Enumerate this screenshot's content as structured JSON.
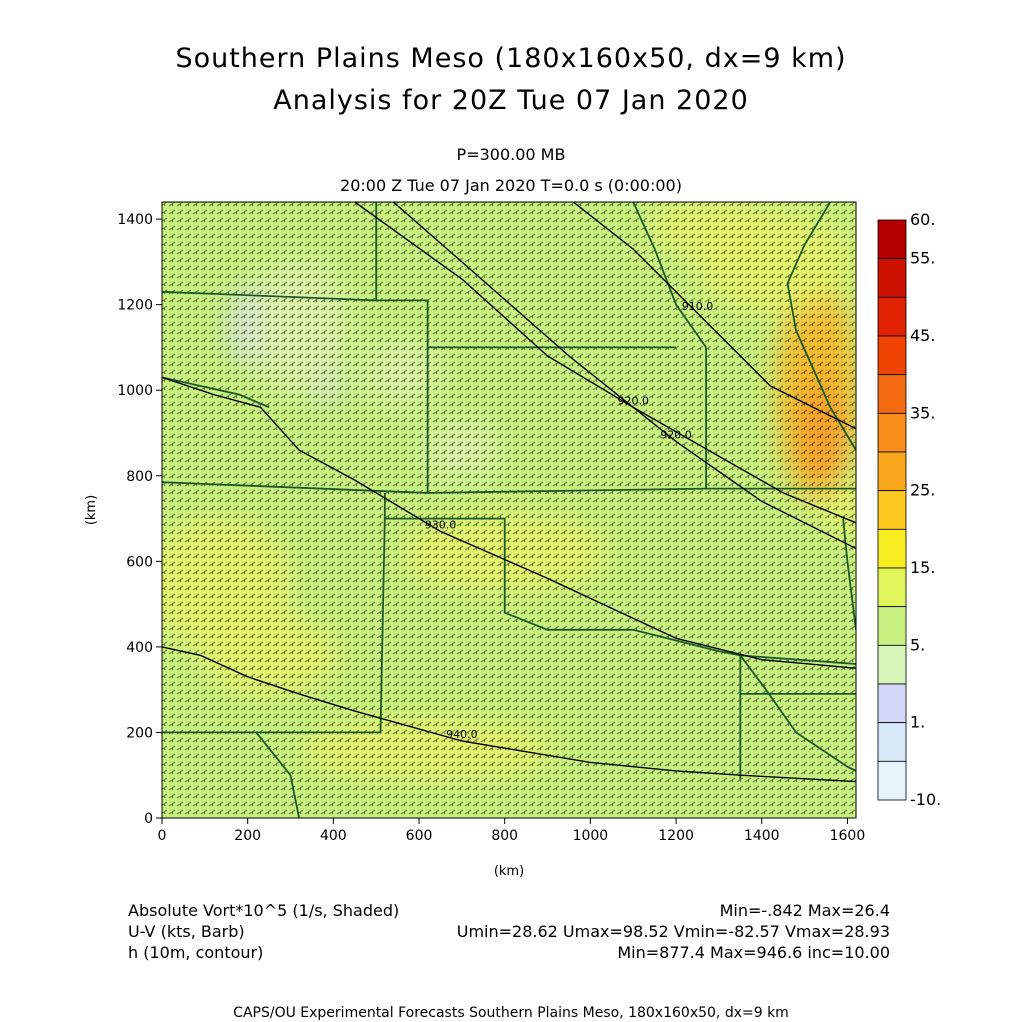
{
  "header": {
    "title": "Southern Plains Meso (180x160x50, dx=9 km)",
    "subtitle": "Analysis for 20Z Tue 07 Jan 2020",
    "level": "P=300.00 MB",
    "time": "20:00 Z Tue 07 Jan 2020    T=0.0 s (0:00:00)"
  },
  "info": {
    "field1_label": "Absolute Vort*10^5 (1/s, Shaded)",
    "field1_stats": "Min=-.842 Max=26.4",
    "field2_label": "U-V (kts, Barb)",
    "field2_stats": "Umin=28.62 Umax=98.52 Vmin=-82.57 Vmax=28.93",
    "field3_label": "h (10m, contour)",
    "field3_stats": "Min=877.4 Max=946.6 inc=10.00"
  },
  "footer": "CAPS/OU Experimental Forecasts  Southern Plains Meso, 180x160x50, dx=9 km",
  "chart_data": {
    "type": "heatmap",
    "xlabel": "(km)",
    "ylabel": "(km)",
    "xlim": [
      0,
      1620
    ],
    "ylim": [
      0,
      1440
    ],
    "xticks": [
      "0",
      "200",
      "400",
      "600",
      "800",
      "1000",
      "1200",
      "1400",
      "1600"
    ],
    "yticks": [
      "0",
      "200",
      "400",
      "600",
      "800",
      "1000",
      "1200",
      "1400"
    ],
    "colorbar": {
      "labels": [
        "60.",
        "55.",
        "45.",
        "35.",
        "25.",
        "15.",
        "5.",
        "1.",
        "-10."
      ],
      "colors": [
        "#b30000",
        "#cc1100",
        "#e02200",
        "#ee4400",
        "#f46a10",
        "#f78c18",
        "#f8a61c",
        "#fbc820",
        "#f8ee22",
        "#e2f55a",
        "#c8f080",
        "#d6f4b8",
        "#d4d8f8",
        "#d8e8f8",
        "#e6f4fc"
      ]
    },
    "contours": [
      {
        "label": "920.0",
        "points": [
          [
            450,
            1440
          ],
          [
            700,
            1260
          ],
          [
            900,
            1080
          ],
          [
            1100,
            960
          ],
          [
            1450,
            760
          ],
          [
            1620,
            690
          ]
        ]
      },
      {
        "label": "930.0",
        "points": [
          [
            0,
            1030
          ],
          [
            120,
            990
          ],
          [
            230,
            960
          ],
          [
            320,
            860
          ],
          [
            450,
            790
          ],
          [
            650,
            670
          ],
          [
            900,
            560
          ],
          [
            1200,
            420
          ],
          [
            1400,
            370
          ],
          [
            1620,
            350
          ]
        ]
      },
      {
        "label": "910.0",
        "points": [
          [
            960,
            1440
          ],
          [
            1100,
            1330
          ],
          [
            1250,
            1180
          ],
          [
            1420,
            1010
          ],
          [
            1620,
            910
          ]
        ]
      },
      {
        "label": "920.0",
        "points": [
          [
            540,
            1440
          ],
          [
            700,
            1300
          ],
          [
            950,
            1080
          ],
          [
            1200,
            880
          ],
          [
            1400,
            740
          ],
          [
            1620,
            630
          ]
        ]
      },
      {
        "label": "940.0",
        "points": [
          [
            0,
            400
          ],
          [
            90,
            380
          ],
          [
            200,
            330
          ],
          [
            320,
            290
          ],
          [
            450,
            250
          ],
          [
            700,
            180
          ],
          [
            1000,
            130
          ],
          [
            1200,
            110
          ],
          [
            1350,
            100
          ],
          [
            1620,
            85
          ]
        ]
      }
    ],
    "shading_blobs": [
      {
        "x": 1530,
        "y": 1000,
        "rx": 95,
        "ry": 260,
        "level": "25."
      },
      {
        "x": 1540,
        "y": 900,
        "rx": 55,
        "ry": 120,
        "level": "35."
      },
      {
        "x": 1430,
        "y": 1300,
        "rx": 180,
        "ry": 120,
        "level": "15."
      },
      {
        "x": 1280,
        "y": 1380,
        "rx": 150,
        "ry": 60,
        "level": "15."
      },
      {
        "x": 1600,
        "y": 720,
        "rx": 60,
        "ry": 60,
        "level": "15."
      },
      {
        "x": 210,
        "y": 1150,
        "rx": 50,
        "ry": 90,
        "level": "1."
      },
      {
        "x": 390,
        "y": 1030,
        "rx": 22,
        "ry": 70,
        "level": "1."
      },
      {
        "x": 710,
        "y": 880,
        "rx": 28,
        "ry": 16,
        "level": "1."
      },
      {
        "x": 320,
        "y": 1150,
        "rx": 120,
        "ry": 160,
        "level": "5."
      },
      {
        "x": 700,
        "y": 860,
        "rx": 90,
        "ry": 70,
        "level": "5."
      },
      {
        "x": 560,
        "y": 1040,
        "rx": 90,
        "ry": 80,
        "level": "5."
      },
      {
        "x": 130,
        "y": 550,
        "rx": 170,
        "ry": 150,
        "level": "15."
      },
      {
        "x": 250,
        "y": 380,
        "rx": 160,
        "ry": 90,
        "level": "15."
      },
      {
        "x": 800,
        "y": 620,
        "rx": 240,
        "ry": 90,
        "level": "15."
      },
      {
        "x": 620,
        "y": 160,
        "rx": 300,
        "ry": 70,
        "level": "15."
      }
    ],
    "boundaries": [
      [
        [
          500,
          1440
        ],
        [
          500,
          1210
        ],
        [
          0,
          1230
        ]
      ],
      [
        [
          500,
          1210
        ],
        [
          620,
          1210
        ],
        [
          620,
          760
        ],
        [
          0,
          785
        ]
      ],
      [
        [
          620,
          1100
        ],
        [
          1200,
          1100
        ]
      ],
      [
        [
          620,
          760
        ],
        [
          1270,
          770
        ],
        [
          1620,
          770
        ]
      ],
      [
        [
          1270,
          770
        ],
        [
          1270,
          1100
        ]
      ],
      [
        [
          520,
          760
        ],
        [
          520,
          700
        ],
        [
          800,
          700
        ],
        [
          800,
          480
        ],
        [
          900,
          440
        ],
        [
          1100,
          440
        ],
        [
          1300,
          390
        ],
        [
          1350,
          380
        ],
        [
          1620,
          360
        ]
      ],
      [
        [
          520,
          700
        ],
        [
          510,
          200
        ],
        [
          0,
          200
        ]
      ],
      [
        [
          1350,
          380
        ],
        [
          1350,
          90
        ]
      ],
      [
        [
          1270,
          1100
        ],
        [
          1200,
          1200
        ],
        [
          1150,
          1330
        ],
        [
          1100,
          1440
        ]
      ],
      [
        [
          1620,
          860
        ],
        [
          1560,
          960
        ],
        [
          1480,
          1140
        ],
        [
          1460,
          1250
        ],
        [
          1500,
          1340
        ],
        [
          1560,
          1440
        ]
      ],
      [
        [
          1620,
          290
        ],
        [
          1350,
          290
        ]
      ],
      [
        [
          0,
          1030
        ],
        [
          180,
          990
        ],
        [
          250,
          960
        ]
      ],
      [
        [
          220,
          200
        ],
        [
          300,
          100
        ],
        [
          320,
          0
        ]
      ],
      [
        [
          1350,
          380
        ],
        [
          1410,
          300
        ],
        [
          1480,
          200
        ],
        [
          1600,
          120
        ],
        [
          1620,
          110
        ]
      ],
      [
        [
          1620,
          440
        ],
        [
          1600,
          600
        ],
        [
          1590,
          700
        ]
      ]
    ]
  }
}
